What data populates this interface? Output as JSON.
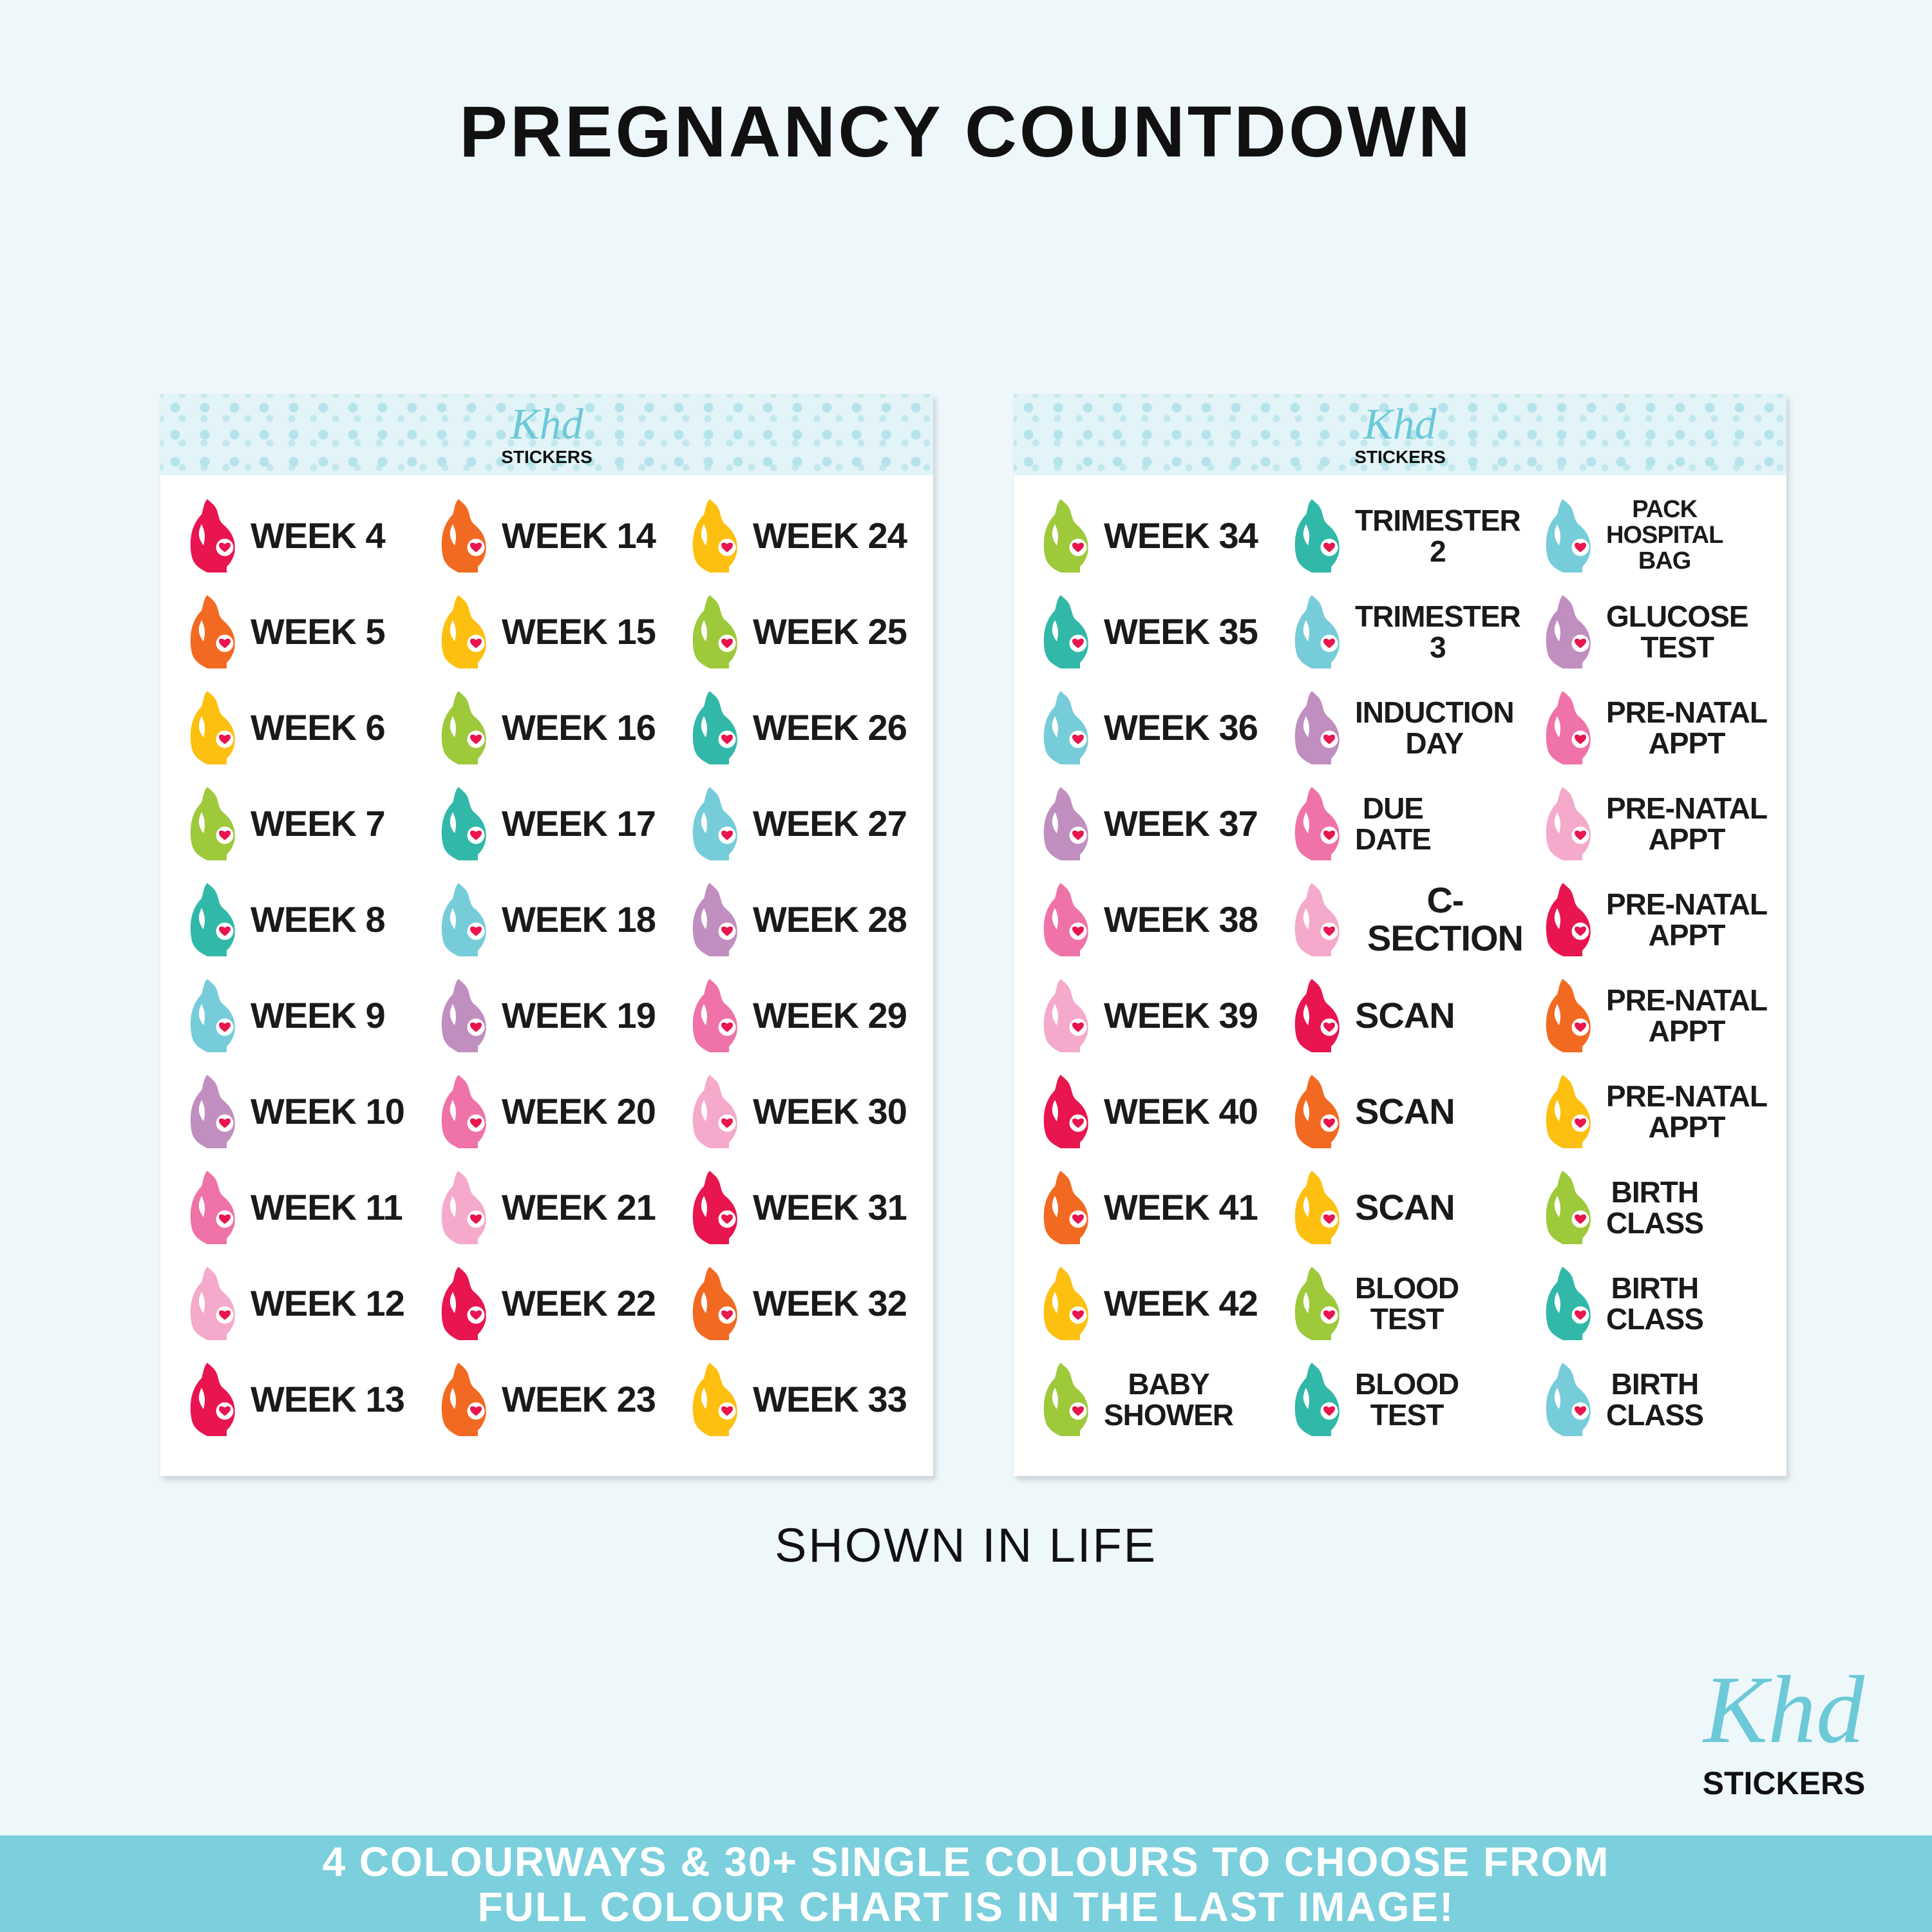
{
  "title": "PREGNANCY COUNTDOWN",
  "sheet_logo": {
    "script": "Khd",
    "word": "STICKERS"
  },
  "colors": {
    "red": "#e8154f",
    "orange": "#f26a21",
    "yellow": "#fdc010",
    "green": "#9dc93b",
    "teal": "#31b8a8",
    "lightblue": "#76cdd9",
    "purple": "#c08ebf",
    "pink": "#ef72a8",
    "lightpink": "#f5aacb",
    "heart": "#e8154f",
    "banner": "#7ccfdc",
    "header_band": "#e2f4f8"
  },
  "sheets": [
    {
      "columns": [
        [
          [
            "WEEK 4",
            "red"
          ],
          [
            "WEEK 5",
            "orange"
          ],
          [
            "WEEK 6",
            "yellow"
          ],
          [
            "WEEK 7",
            "green"
          ],
          [
            "WEEK 8",
            "teal"
          ],
          [
            "WEEK 9",
            "lightblue"
          ],
          [
            "WEEK 10",
            "purple"
          ],
          [
            "WEEK 11",
            "pink"
          ],
          [
            "WEEK 12",
            "lightpink"
          ],
          [
            "WEEK 13",
            "red"
          ]
        ],
        [
          [
            "WEEK 14",
            "orange"
          ],
          [
            "WEEK 15",
            "yellow"
          ],
          [
            "WEEK 16",
            "green"
          ],
          [
            "WEEK 17",
            "teal"
          ],
          [
            "WEEK 18",
            "lightblue"
          ],
          [
            "WEEK 19",
            "purple"
          ],
          [
            "WEEK 20",
            "pink"
          ],
          [
            "WEEK 21",
            "lightpink"
          ],
          [
            "WEEK 22",
            "red"
          ],
          [
            "WEEK 23",
            "orange"
          ]
        ],
        [
          [
            "WEEK 24",
            "yellow"
          ],
          [
            "WEEK 25",
            "green"
          ],
          [
            "WEEK 26",
            "teal"
          ],
          [
            "WEEK 27",
            "lightblue"
          ],
          [
            "WEEK 28",
            "purple"
          ],
          [
            "WEEK 29",
            "pink"
          ],
          [
            "WEEK 30",
            "lightpink"
          ],
          [
            "WEEK 31",
            "red"
          ],
          [
            "WEEK 32",
            "orange"
          ],
          [
            "WEEK 33",
            "yellow"
          ]
        ]
      ]
    },
    {
      "columns": [
        [
          [
            "WEEK 34",
            "green"
          ],
          [
            "WEEK 35",
            "teal"
          ],
          [
            "WEEK 36",
            "lightblue"
          ],
          [
            "WEEK 37",
            "purple"
          ],
          [
            "WEEK 38",
            "pink"
          ],
          [
            "WEEK 39",
            "lightpink"
          ],
          [
            "WEEK 40",
            "red"
          ],
          [
            "WEEK 41",
            "orange"
          ],
          [
            "WEEK 42",
            "yellow"
          ],
          [
            "BABY\nSHOWER",
            "green"
          ]
        ],
        [
          [
            "TRIMESTER\n2",
            "teal"
          ],
          [
            "TRIMESTER\n3",
            "lightblue"
          ],
          [
            "INDUCTION\nDAY",
            "purple"
          ],
          [
            "DUE\nDATE",
            "pink"
          ],
          [
            "C-SECTION",
            "lightpink"
          ],
          [
            "SCAN",
            "red"
          ],
          [
            "SCAN",
            "orange"
          ],
          [
            "SCAN",
            "yellow"
          ],
          [
            "BLOOD\nTEST",
            "green"
          ],
          [
            "BLOOD\nTEST",
            "teal"
          ]
        ],
        [
          [
            "PACK\nHOSPITAL\nBAG",
            "lightblue"
          ],
          [
            "GLUCOSE\nTEST",
            "purple"
          ],
          [
            "PRE-NATAL\nAPPT",
            "pink"
          ],
          [
            "PRE-NATAL\nAPPT",
            "lightpink"
          ],
          [
            "PRE-NATAL\nAPPT",
            "red"
          ],
          [
            "PRE-NATAL\nAPPT",
            "orange"
          ],
          [
            "PRE-NATAL\nAPPT",
            "yellow"
          ],
          [
            "BIRTH\nCLASS",
            "green"
          ],
          [
            "BIRTH\nCLASS",
            "teal"
          ],
          [
            "BIRTH\nCLASS",
            "lightblue"
          ]
        ]
      ]
    }
  ],
  "caption": "SHOWN IN LIFE",
  "brand_logo": {
    "script": "Khd",
    "word": "STICKERS"
  },
  "banner": {
    "line1": "4 COLOURWAYS & 30+ SINGLE COLOURS TO CHOOSE FROM",
    "line2": "FULL COLOUR CHART IS IN THE LAST IMAGE!"
  }
}
